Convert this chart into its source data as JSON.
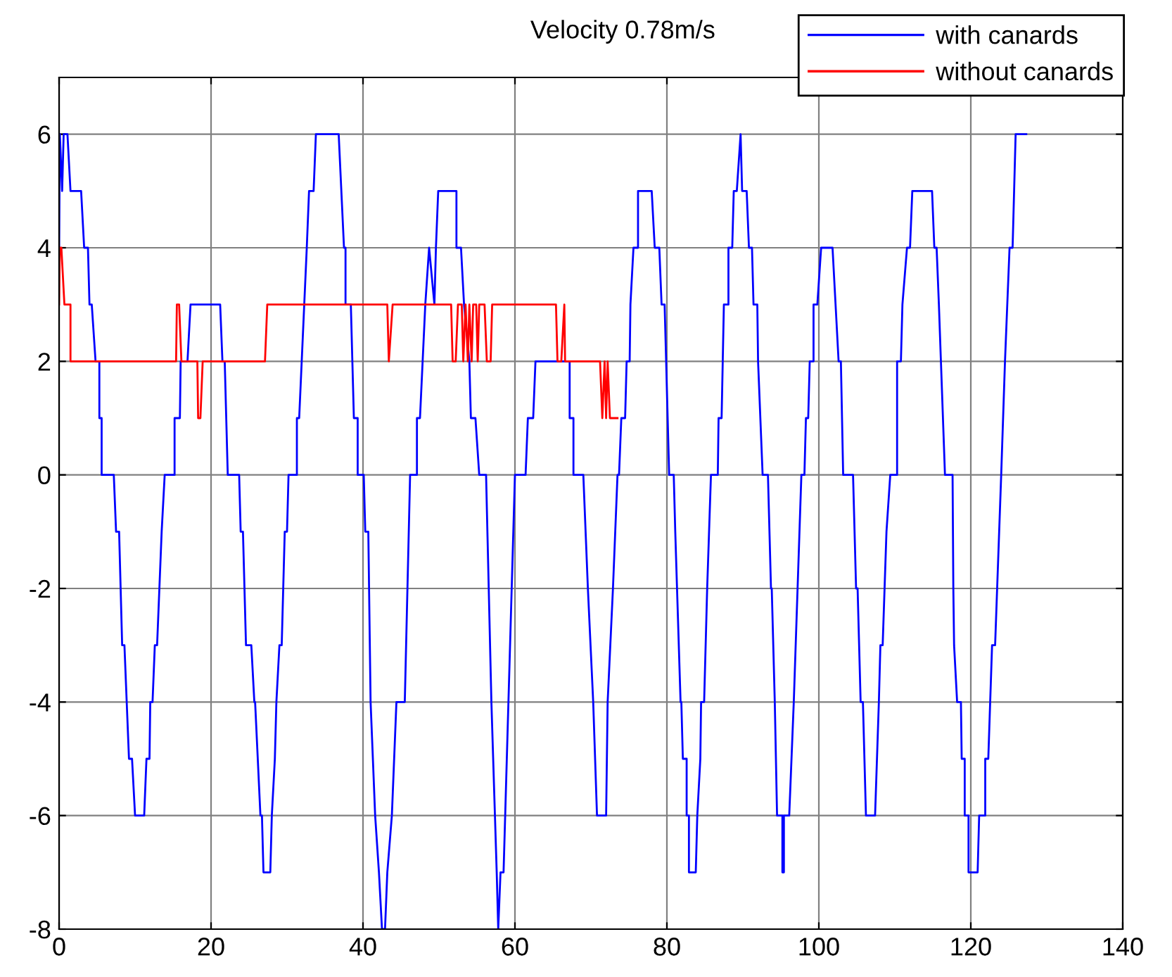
{
  "chart_data": {
    "type": "line",
    "title": "Velocity 0.78m/s",
    "series": [
      {
        "name": "with canards",
        "color": "#0000ff",
        "x": [
          0,
          0.1,
          0.4,
          0.6,
          1.1,
          1.5,
          2.9,
          3.3,
          3.8,
          4.0,
          4.3,
          4.8,
          5.3,
          5.3,
          5.6,
          5.6,
          7.2,
          7.5,
          7.9,
          8.3,
          8.6,
          9.2,
          9.6,
          10.0,
          11.2,
          11.5,
          11.9,
          12.0,
          12.3,
          12.6,
          12.9,
          13.2,
          13.5,
          13.9,
          15.2,
          15.2,
          15.9,
          16.0,
          16.9,
          17.3,
          21.2,
          21.5,
          21.8,
          22.0,
          22.2,
          23.7,
          23.9,
          24.2,
          24.6,
          25.3,
          25.7,
          25.8,
          26.5,
          26.7,
          26.9,
          27.8,
          28.0,
          28.4,
          28.6,
          29.0,
          29.3,
          29.7,
          30.0,
          30.2,
          31.3,
          31.3,
          31.6,
          32.6,
          32.9,
          33.5,
          33.8,
          36.8,
          37.5,
          37.7,
          37.7,
          38.4,
          38.8,
          39.3,
          39.3,
          40.1,
          40.3,
          40.7,
          41.0,
          41.6,
          42.1,
          42.5,
          42.9,
          43.2,
          43.8,
          44.4,
          45.5,
          46.2,
          47.1,
          47.1,
          47.5,
          48.2,
          48.7,
          49.4,
          49.6,
          49.9,
          52.3,
          52.3,
          52.9,
          53.3,
          54.0,
          54.2,
          54.8,
          55.3,
          56.2,
          56.9,
          57.6,
          57.8,
          58.1,
          58.5,
          60.0,
          61.4,
          61.7,
          62.4,
          62.7,
          67.2,
          67.2,
          67.7,
          67.7,
          69.0,
          69.6,
          70.3,
          70.8,
          72.0,
          72.2,
          72.9,
          73.5,
          73.7,
          74.0,
          74.5,
          74.7,
          75.1,
          75.2,
          75.6,
          76.2,
          76.2,
          78.0,
          78.4,
          79.0,
          79.3,
          79.7,
          79.9,
          80.3,
          80.9,
          81.1,
          81.8,
          81.9,
          82.1,
          82.6,
          82.6,
          82.9,
          82.9,
          83.8,
          84.0,
          84.4,
          84.5,
          84.9,
          85.3,
          85.8,
          86.7,
          86.8,
          87.2,
          87.5,
          88.1,
          88.1,
          88.6,
          88.8,
          89.2,
          89.7,
          89.9,
          90.5,
          90.8,
          91.2,
          91.4,
          91.9,
          92.0,
          92.6,
          93.3,
          93.7,
          93.8,
          94.2,
          94.5,
          95.2,
          95.2,
          95.4,
          95.4,
          96.1,
          96.7,
          97.7,
          98.1,
          98.3,
          98.6,
          98.8,
          99.3,
          99.3,
          99.8,
          100.3,
          101.8,
          102.6,
          102.9,
          103.2,
          104.5,
          104.9,
          105.1,
          105.5,
          105.8,
          106.2,
          107.4,
          107.9,
          108.1,
          108.4,
          108.9,
          109.4,
          110.3,
          110.3,
          110.8,
          111.0,
          111.6,
          112.0,
          112.3,
          114.9,
          115.2,
          115.5,
          115.8,
          116.6,
          117.6,
          117.7,
          117.8,
          118.2,
          118.7,
          118.8,
          119.2,
          119.2,
          119.7,
          119.7,
          120.9,
          121.1,
          121.9,
          121.9,
          122.3,
          122.8,
          123.2,
          124.0,
          124.5,
          125.1,
          125.5,
          125.9,
          127.3
        ],
        "values": [
          4,
          6,
          5,
          6,
          6,
          5,
          5,
          4,
          4,
          3,
          3,
          2,
          2,
          1,
          1,
          0,
          0,
          -1,
          -1,
          -3,
          -3,
          -5,
          -5,
          -6,
          -6,
          -5,
          -5,
          -4,
          -4,
          -3,
          -3,
          -2,
          -1,
          0,
          0,
          1,
          1,
          2,
          2,
          3,
          3,
          2,
          2,
          1,
          0,
          0,
          -1,
          -1,
          -3,
          -3,
          -4,
          -4,
          -6,
          -6,
          -7,
          -7,
          -6,
          -5,
          -4,
          -3,
          -3,
          -1,
          -1,
          0,
          0,
          1,
          1,
          4,
          5,
          5,
          6,
          6,
          4,
          4,
          3,
          3,
          1,
          1,
          0,
          0,
          -1,
          -1,
          -4,
          -6,
          -7,
          -8,
          -8,
          -7,
          -6,
          -4,
          -4,
          0,
          0,
          1,
          1,
          3,
          4,
          3,
          4,
          5,
          5,
          4,
          4,
          3,
          2,
          1,
          1,
          0,
          0,
          -4,
          -7,
          -8,
          -7,
          -7,
          0,
          0,
          1,
          1,
          2,
          2,
          1,
          1,
          0,
          0,
          -2,
          -4,
          -6,
          -6,
          -4,
          -2,
          0,
          0,
          1,
          1,
          2,
          2,
          3,
          4,
          4,
          5,
          5,
          4,
          4,
          3,
          3,
          2,
          0,
          0,
          -1,
          -4,
          -4,
          -5,
          -5,
          -6,
          -6,
          -7,
          -7,
          -6,
          -5,
          -4,
          -4,
          -2,
          0,
          0,
          1,
          1,
          3,
          3,
          4,
          4,
          5,
          5,
          6,
          5,
          5,
          4,
          4,
          3,
          3,
          2,
          0,
          0,
          -2,
          -2,
          -4,
          -6,
          -6,
          -7,
          -7,
          -6,
          -6,
          -4,
          0,
          0,
          1,
          1,
          2,
          2,
          3,
          3,
          4,
          4,
          2,
          2,
          0,
          0,
          -2,
          -2,
          -4,
          -4,
          -6,
          -6,
          -4,
          -3,
          -3,
          -1,
          0,
          0,
          2,
          2,
          3,
          4,
          4,
          5,
          5,
          4,
          4,
          3,
          0,
          0,
          -2,
          -3,
          -4,
          -4,
          -5,
          -5,
          -6,
          -6,
          -7,
          -7,
          -6,
          -6,
          -5,
          -5,
          -3,
          -3,
          0,
          2,
          4,
          4,
          6,
          6
        ]
      },
      {
        "name": "without canards",
        "color": "#ff0000",
        "x": [
          0,
          0.1,
          0.3,
          0.7,
          1.5,
          1.5,
          15.4,
          15.5,
          15.8,
          16.1,
          18.2,
          18.3,
          18.6,
          18.9,
          27.1,
          27.4,
          43.2,
          43.4,
          43.9,
          51.6,
          51.8,
          52.2,
          52.5,
          53.0,
          53.2,
          53.5,
          53.8,
          54.0,
          54.3,
          54.5,
          54.9,
          55.1,
          55.3,
          56.0,
          56.3,
          56.8,
          57.0,
          65.4,
          65.6,
          66.1,
          66.5,
          66.6,
          71.2,
          71.5,
          71.8,
          72.0,
          72.2,
          72.5,
          73.3,
          73.5
        ],
        "values": [
          3,
          4,
          4,
          3,
          3,
          2,
          2,
          3,
          3,
          2,
          2,
          1,
          1,
          2,
          2,
          3,
          3,
          2,
          3,
          3,
          2,
          2,
          3,
          3,
          2,
          3,
          2,
          3,
          2,
          3,
          3,
          2,
          3,
          3,
          2,
          2,
          3,
          3,
          2,
          2,
          3,
          2,
          2,
          1,
          2,
          1,
          2,
          1,
          1,
          1
        ]
      }
    ],
    "xlim": [
      0,
      140
    ],
    "xticks": [
      0,
      20,
      40,
      60,
      80,
      100,
      120,
      140
    ],
    "ylim": [
      -8,
      7
    ],
    "yticks": [
      -8,
      -6,
      -4,
      -2,
      0,
      2,
      4,
      6
    ],
    "grid": true,
    "legend": "top right",
    "marker": "none",
    "line_style": "solid"
  }
}
